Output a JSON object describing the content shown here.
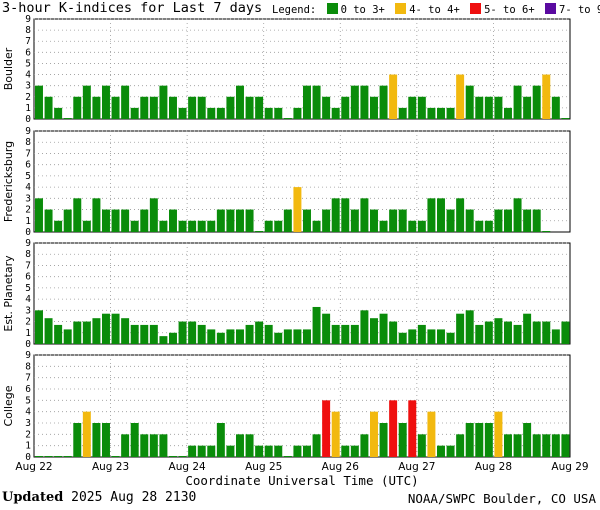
{
  "header": {
    "title": "3-hour K-indices for Last 7 days"
  },
  "legend": {
    "label": "Legend:",
    "items": [
      {
        "label": "0 to 3+",
        "color": "#0a8c0a"
      },
      {
        "label": "4- to 4+",
        "color": "#f2b90f"
      },
      {
        "label": "5- to 6+",
        "color": "#ef0f0f"
      },
      {
        "label": "7- to 9",
        "color": "#5a0aa0"
      }
    ]
  },
  "footer": {
    "updated_label": "Updated",
    "updated_value": "2025 Aug 28 2130",
    "source": "NOAA/SWPC Boulder, CO USA"
  },
  "chart_data": {
    "type": "bar",
    "xlabel": "Coordinate Universal Time (UTC)",
    "x_tick_labels": [
      "Aug 22",
      "Aug 23",
      "Aug 24",
      "Aug 25",
      "Aug 26",
      "Aug 27",
      "Aug 28",
      "Aug 29"
    ],
    "ylim": [
      0,
      9
    ],
    "y_ticks": [
      0,
      1,
      2,
      3,
      4,
      5,
      6,
      7,
      8,
      9
    ],
    "grid": true,
    "legend_position": "top-right",
    "color_scale": {
      "green_max": 3.99,
      "yellow_max": 4.99,
      "red_max": 6.99
    },
    "panels": [
      {
        "name": "Boulder",
        "values": [
          3,
          2,
          1,
          0,
          2,
          3,
          2,
          3,
          2,
          3,
          1,
          2,
          2,
          3,
          2,
          1,
          2,
          2,
          1,
          1,
          2,
          3,
          2,
          2,
          1,
          1,
          0,
          1,
          3,
          3,
          2,
          1,
          2,
          3,
          3,
          2,
          3,
          4,
          1,
          2,
          2,
          1,
          1,
          1,
          4,
          3,
          2,
          2,
          2,
          1,
          3,
          2,
          3,
          4,
          2,
          0
        ]
      },
      {
        "name": "Fredericksburg",
        "values": [
          3,
          2,
          1,
          2,
          3,
          1,
          3,
          2,
          2,
          2,
          1,
          2,
          3,
          1,
          2,
          1,
          1,
          1,
          1,
          2,
          2,
          2,
          2,
          0,
          1,
          1,
          2,
          4,
          2,
          1,
          2,
          3,
          3,
          2,
          3,
          2,
          1,
          2,
          2,
          1,
          1,
          3,
          3,
          2,
          3,
          2,
          1,
          1,
          2,
          2,
          3,
          2,
          2,
          0
        ]
      },
      {
        "name": "Est. Planetary",
        "values": [
          3,
          2.3,
          1.7,
          1.3,
          2,
          2,
          2.3,
          2.7,
          2.7,
          2.3,
          1.7,
          1.7,
          1.7,
          0.7,
          1,
          2,
          2,
          1.7,
          1.3,
          1,
          1.3,
          1.3,
          1.7,
          2,
          1.7,
          1,
          1.3,
          1.3,
          1.3,
          3.3,
          2.7,
          1.7,
          1.7,
          1.7,
          3,
          2.3,
          2.7,
          2,
          1,
          1.3,
          1.7,
          1.3,
          1.3,
          1,
          2.7,
          3,
          1.7,
          2,
          2.3,
          2,
          1.7,
          2.7,
          2,
          2,
          1.3,
          2
        ]
      },
      {
        "name": "College",
        "values": [
          0,
          0,
          0,
          0,
          3,
          4,
          3,
          3,
          0,
          2,
          3,
          2,
          2,
          2,
          0,
          0,
          1,
          1,
          1,
          3,
          1,
          2,
          2,
          1,
          1,
          1,
          0,
          1,
          1,
          2,
          5,
          4,
          1,
          1,
          2,
          4,
          3,
          5,
          3,
          5,
          2,
          4,
          1,
          1,
          2,
          3,
          3,
          3,
          4,
          2,
          2,
          3,
          2,
          2,
          2,
          2
        ]
      }
    ]
  }
}
